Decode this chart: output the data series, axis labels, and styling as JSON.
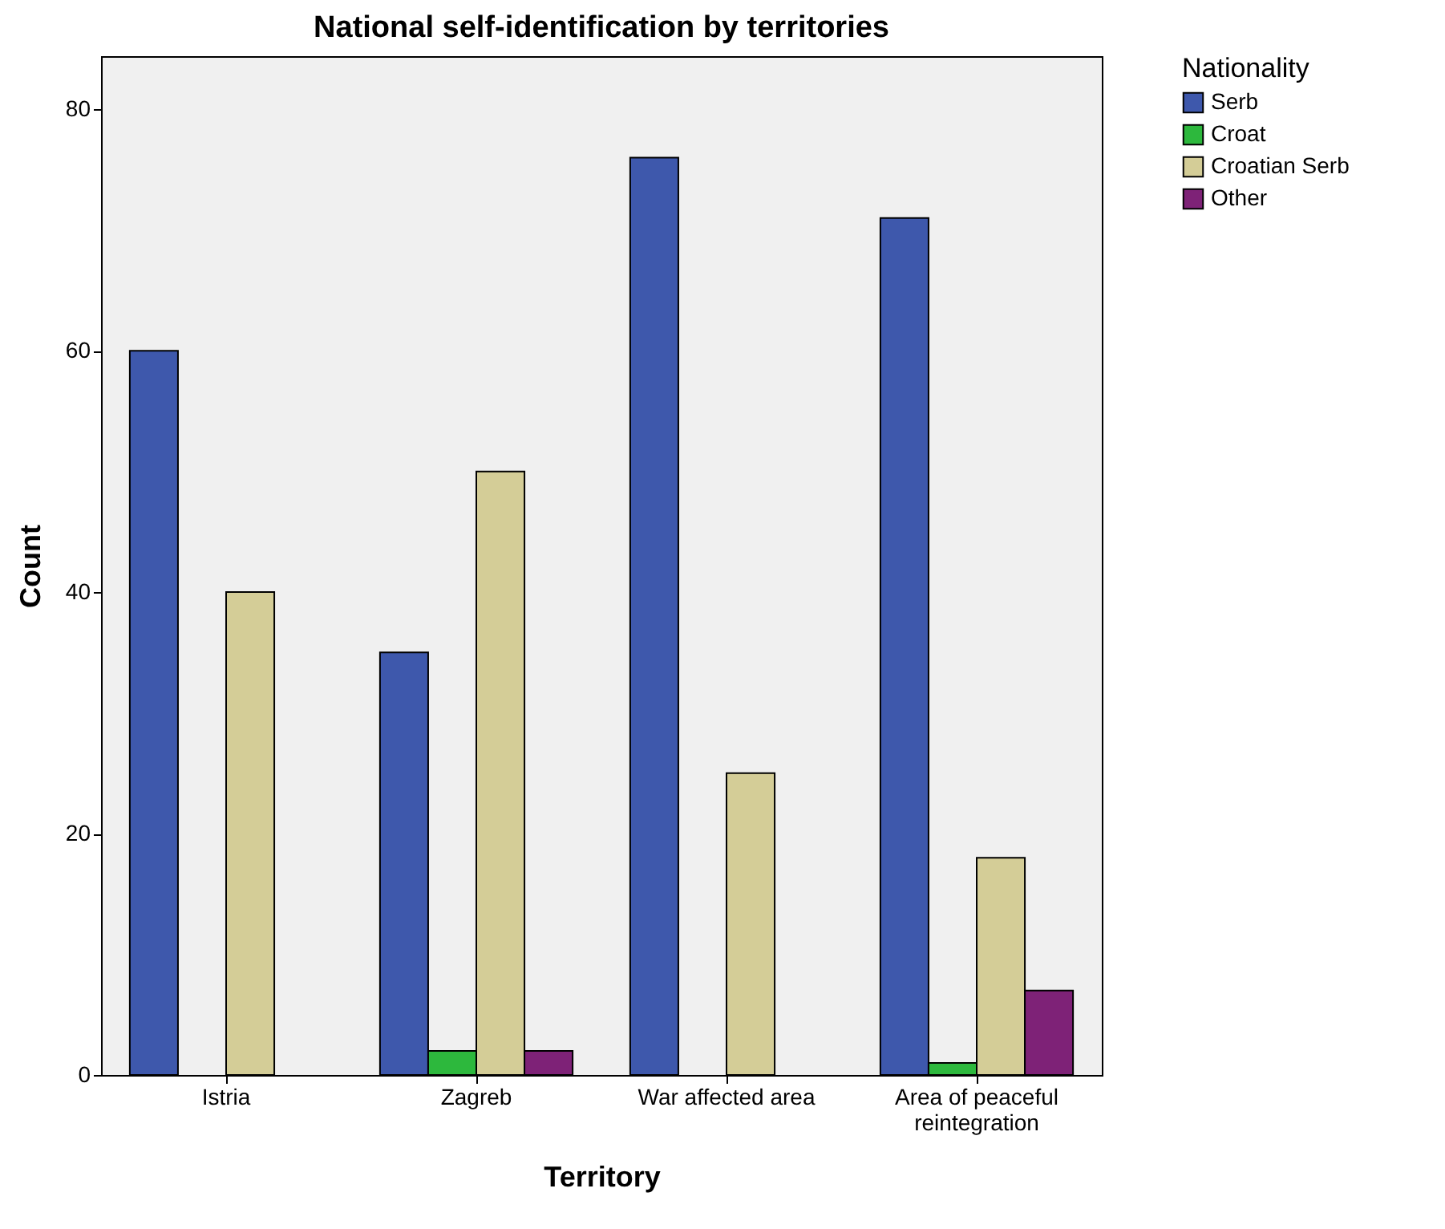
{
  "chart_data": {
    "type": "bar",
    "title": "National self-identification by territories",
    "xlabel": "Territory",
    "ylabel": "Count",
    "legend_title": "Nationality",
    "categories": [
      "Istria",
      "Zagreb",
      "War affected area",
      "Area of peaceful reintegration"
    ],
    "series": [
      {
        "name": "Serb",
        "color": "#3e58ac",
        "values": [
          60,
          35,
          76,
          71
        ]
      },
      {
        "name": "Croat",
        "color": "#2db83d",
        "values": [
          null,
          2,
          null,
          1
        ]
      },
      {
        "name": "Croatian Serb",
        "color": "#d4cd97",
        "values": [
          40,
          50,
          25,
          18
        ]
      },
      {
        "name": "Other",
        "color": "#7e2277",
        "values": [
          null,
          2,
          null,
          7
        ]
      }
    ],
    "ylim": [
      0,
      84.4
    ],
    "yticks": [
      0,
      20,
      40,
      60,
      80
    ],
    "grid": false,
    "legend": "top right"
  }
}
